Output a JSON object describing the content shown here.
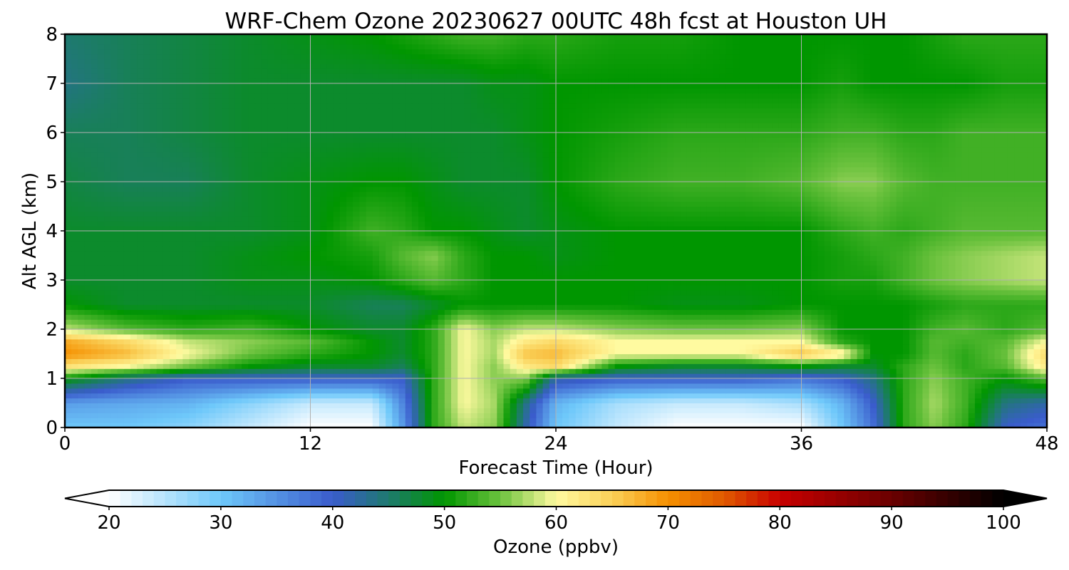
{
  "chart_data": {
    "type": "heatmap",
    "title": "WRF-Chem Ozone  20230627 00UTC 48h fcst at Houston UH",
    "xlabel": "Forecast Time (Hour)",
    "ylabel": "Alt AGL (km)",
    "xlim": [
      0,
      48
    ],
    "ylim": [
      0,
      8
    ],
    "x_ticks": [
      "0",
      "12",
      "24",
      "36",
      "48"
    ],
    "y_ticks": [
      "0",
      "1",
      "2",
      "3",
      "4",
      "5",
      "6",
      "7",
      "8"
    ],
    "grid": true,
    "x": [
      0,
      3,
      6,
      9,
      12,
      15,
      16.5,
      18,
      19.5,
      21,
      22.5,
      24,
      27,
      30,
      33,
      36,
      38,
      39.5,
      41,
      42.5,
      44,
      46,
      48
    ],
    "y": [
      0,
      0.5,
      1,
      1.25,
      1.5,
      1.75,
      2,
      2.5,
      3,
      3.5,
      4,
      5,
      6,
      7,
      8
    ],
    "z": [
      [
        30,
        30,
        28,
        24,
        20,
        20,
        34,
        52,
        58,
        56,
        42,
        30,
        24,
        20,
        20,
        20,
        30,
        38,
        52,
        56,
        52,
        40,
        38
      ],
      [
        34,
        33,
        32,
        28,
        24,
        24,
        36,
        52,
        60,
        57,
        44,
        32,
        26,
        24,
        24,
        26,
        32,
        40,
        52,
        57,
        53,
        44,
        42
      ],
      [
        50,
        44,
        40,
        40,
        40,
        40,
        40,
        52,
        60,
        56,
        56,
        42,
        40,
        40,
        40,
        38,
        40,
        44,
        52,
        56,
        53,
        50,
        54
      ],
      [
        63,
        60,
        55,
        50,
        48,
        48,
        46,
        52,
        60,
        56,
        62,
        64,
        50,
        48,
        48,
        50,
        48,
        48,
        52,
        55,
        52,
        54,
        62
      ],
      [
        70,
        67,
        60,
        55,
        52,
        50,
        48,
        52,
        60,
        57,
        66,
        67,
        60,
        60,
        60,
        66,
        62,
        50,
        50,
        54,
        52,
        55,
        64
      ],
      [
        68,
        64,
        58,
        56,
        54,
        50,
        48,
        52,
        60,
        57,
        62,
        64,
        60,
        60,
        60,
        60,
        52,
        50,
        50,
        54,
        53,
        54,
        60
      ],
      [
        58,
        54,
        52,
        53,
        50,
        48,
        48,
        52,
        60,
        56,
        58,
        58,
        56,
        55,
        55,
        56,
        50,
        50,
        50,
        53,
        54,
        52,
        54
      ],
      [
        50,
        48,
        48,
        48,
        48,
        46,
        46,
        48,
        50,
        50,
        50,
        50,
        50,
        49,
        49,
        50,
        50,
        50,
        50,
        51,
        52,
        52,
        52
      ],
      [
        48,
        48,
        48,
        49,
        49,
        50,
        52,
        54,
        52,
        50,
        50,
        50,
        50,
        50,
        50,
        50,
        51,
        51,
        53,
        55,
        56,
        57,
        58
      ],
      [
        48,
        48,
        48,
        49,
        50,
        51,
        54,
        56,
        52,
        50,
        50,
        49,
        50,
        50,
        50,
        50,
        51,
        52,
        53,
        55,
        56,
        57,
        58
      ],
      [
        48,
        48,
        48,
        48,
        49,
        53,
        52,
        50,
        50,
        49,
        48,
        49,
        50,
        50,
        50,
        50,
        52,
        53,
        52,
        53,
        54,
        54,
        54
      ],
      [
        47,
        46,
        46,
        48,
        49,
        50,
        50,
        49,
        48,
        48,
        48,
        50,
        52,
        53,
        53,
        54,
        56,
        56,
        54,
        53,
        53,
        53,
        53
      ],
      [
        46,
        46,
        47,
        48,
        48,
        48,
        48,
        48,
        48,
        48,
        49,
        50,
        51,
        52,
        52,
        52,
        53,
        53,
        52,
        52,
        53,
        53,
        53
      ],
      [
        44,
        46,
        47,
        48,
        48,
        48,
        48,
        48,
        48,
        49,
        49,
        50,
        50,
        50,
        50,
        50,
        51,
        50,
        50,
        50,
        50,
        51,
        51
      ],
      [
        45,
        46,
        47,
        48,
        49,
        50,
        51,
        52,
        53,
        53,
        52,
        52,
        51,
        51,
        50,
        50,
        50,
        50,
        50,
        51,
        52,
        52,
        52
      ]
    ],
    "colorbar": {
      "label": "Ozone  (ppbv)",
      "range": [
        20,
        100
      ],
      "ticks": [
        "20",
        "30",
        "40",
        "50",
        "60",
        "70",
        "80",
        "90",
        "100"
      ],
      "extend": "both",
      "colors": [
        {
          "v": 20,
          "c": "#ffffff"
        },
        {
          "v": 30,
          "c": "#6ec8fa"
        },
        {
          "v": 40,
          "c": "#3a5ccc"
        },
        {
          "v": 45,
          "c": "#1e7a6e"
        },
        {
          "v": 50,
          "c": "#009600"
        },
        {
          "v": 55,
          "c": "#6cc23e"
        },
        {
          "v": 60,
          "c": "#fffaa0"
        },
        {
          "v": 65,
          "c": "#fad058"
        },
        {
          "v": 70,
          "c": "#f59000"
        },
        {
          "v": 75,
          "c": "#e05a00"
        },
        {
          "v": 80,
          "c": "#c80000"
        },
        {
          "v": 90,
          "c": "#6a0000"
        },
        {
          "v": 100,
          "c": "#000000"
        }
      ]
    }
  }
}
